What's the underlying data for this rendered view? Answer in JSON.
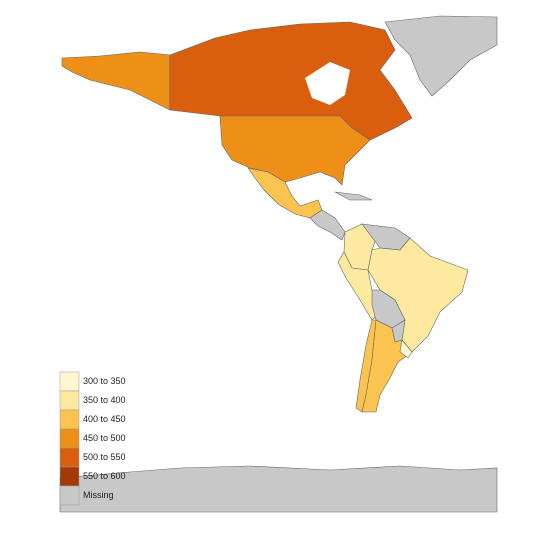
{
  "legend": {
    "items": [
      {
        "label": "300 to 350",
        "color": "#fff7d0"
      },
      {
        "label": "350 to 400",
        "color": "#fee9a0"
      },
      {
        "label": "400 to 450",
        "color": "#fbc450"
      },
      {
        "label": "450 to 500",
        "color": "#ee8f18"
      },
      {
        "label": "500 to 550",
        "color": "#d95f0e"
      },
      {
        "label": "550 to 600",
        "color": "#a33a06"
      },
      {
        "label": "Missing",
        "color": "#c8c8c8"
      }
    ]
  }
}
